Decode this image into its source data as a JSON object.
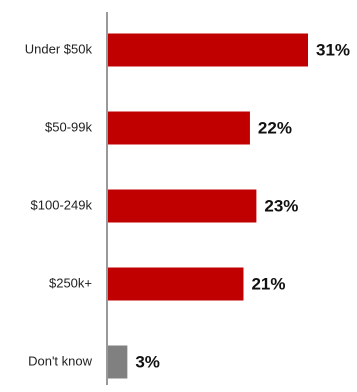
{
  "chart_data": {
    "type": "bar",
    "orientation": "horizontal",
    "title": "",
    "xlabel": "",
    "ylabel": "",
    "categories": [
      "Under $50k",
      "$50-99k",
      "$100-249k",
      "$250k+",
      "Don't know"
    ],
    "values": [
      31,
      22,
      23,
      21,
      3
    ],
    "value_labels": [
      "31%",
      "22%",
      "23%",
      "21%",
      "3%"
    ],
    "xlim": [
      0,
      31
    ],
    "grid": false,
    "legend": "none",
    "colors": [
      "#c00000",
      "#c00000",
      "#c00000",
      "#c00000",
      "#808080"
    ]
  }
}
